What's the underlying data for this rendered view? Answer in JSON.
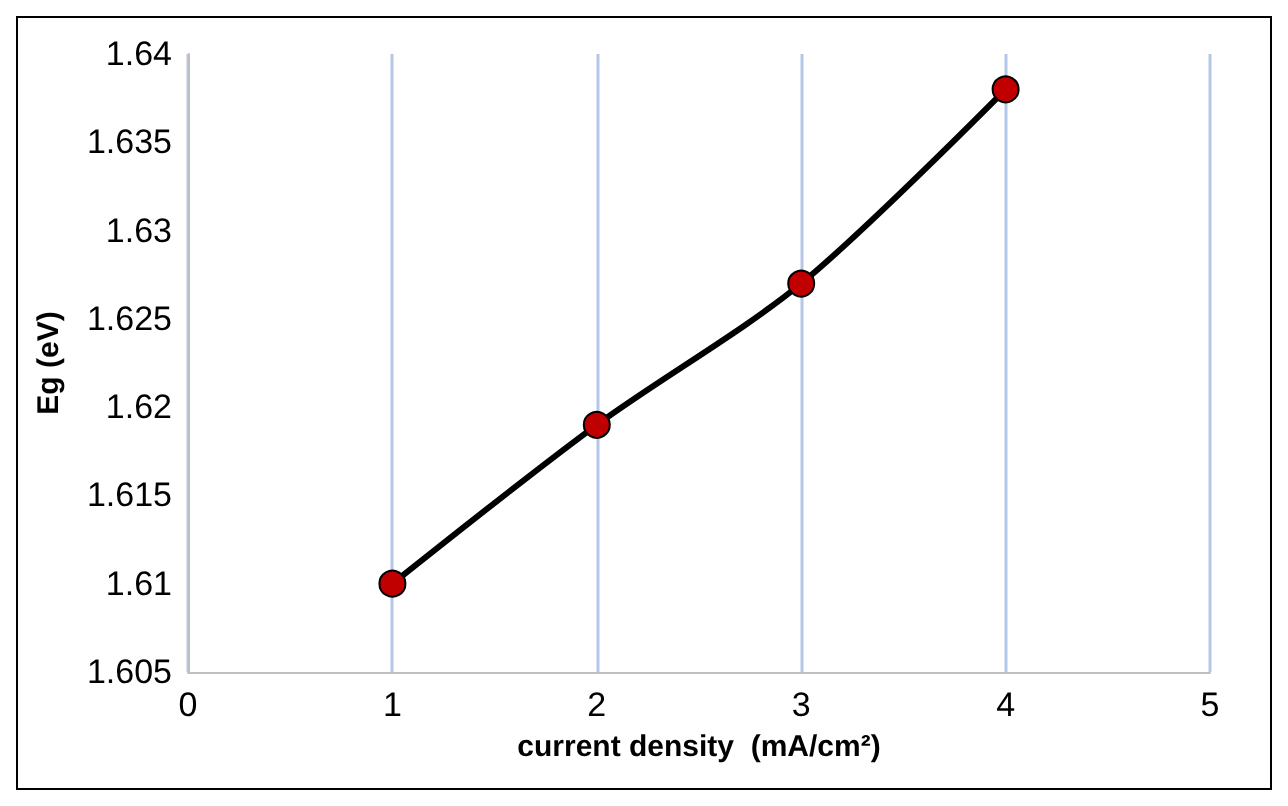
{
  "chart_data": {
    "type": "line",
    "xlabel": "current density  (mA/cm²)",
    "ylabel": "Eg (eV)",
    "x": [
      1,
      2,
      3,
      4
    ],
    "series": [
      {
        "color": "#c00000",
        "values": [
          1.61,
          1.619,
          1.627,
          1.638
        ]
      }
    ],
    "xlim": [
      0,
      5
    ],
    "xticks": [
      0,
      1,
      2,
      3,
      4,
      5
    ],
    "ylim": [
      1.605,
      1.64
    ],
    "yticks": [
      1.605,
      1.61,
      1.615,
      1.62,
      1.625,
      1.63,
      1.635,
      1.64
    ],
    "grid": "x",
    "marker": "circle",
    "line_style": "solid"
  }
}
